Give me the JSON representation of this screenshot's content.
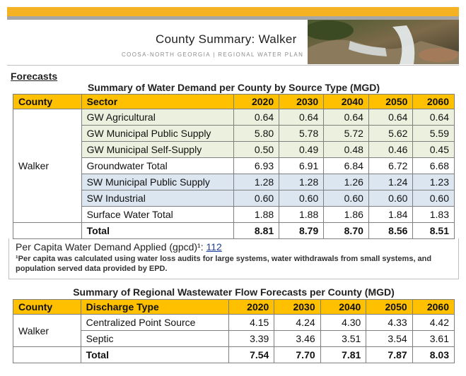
{
  "header": {
    "title": "County Summary:  Walker",
    "subtitle": "COOSA-NORTH GEORGIA | REGIONAL WATER PLAN"
  },
  "section_title": "Forecasts",
  "demand_table": {
    "title": "Summary of Water Demand per County by Source Type (MGD)",
    "columns": [
      "County",
      "Sector",
      "2020",
      "2030",
      "2040",
      "2050",
      "2060"
    ],
    "county": "Walker",
    "rows": [
      [
        "GW Agricultural",
        "0.64",
        "0.64",
        "0.64",
        "0.64",
        "0.64"
      ],
      [
        "GW Municipal Public Supply",
        "5.80",
        "5.78",
        "5.72",
        "5.62",
        "5.59"
      ],
      [
        "GW Municipal Self-Supply",
        "0.50",
        "0.49",
        "0.48",
        "0.46",
        "0.45"
      ],
      [
        "Groundwater Total",
        "6.93",
        "6.91",
        "6.84",
        "6.72",
        "6.68"
      ],
      [
        "SW Municipal Public Supply",
        "1.28",
        "1.28",
        "1.26",
        "1.24",
        "1.23"
      ],
      [
        "SW Industrial",
        "0.60",
        "0.60",
        "0.60",
        "0.60",
        "0.60"
      ],
      [
        "Surface Water Total",
        "1.88",
        "1.88",
        "1.86",
        "1.84",
        "1.83"
      ]
    ],
    "total": [
      "Total",
      "8.81",
      "8.79",
      "8.70",
      "8.56",
      "8.51"
    ]
  },
  "per_capita": {
    "label": "Per Capita Water Demand Applied (gpcd)¹:",
    "value": "112"
  },
  "footnote": "¹Per capita was calculated using water loss audits for large systems, water withdrawals from small systems, and population served data provided by EPD.",
  "wastewater_table": {
    "title": "Summary of Regional Wastewater Flow Forecasts per County (MGD)",
    "columns": [
      "County",
      "Discharge Type",
      "2020",
      "2030",
      "2040",
      "2050",
      "2060"
    ],
    "county": "Walker",
    "rows": [
      [
        "Centralized Point Source",
        "4.15",
        "4.24",
        "4.30",
        "4.33",
        "4.42"
      ],
      [
        "Septic",
        "3.39",
        "3.46",
        "3.51",
        "3.54",
        "3.61"
      ]
    ],
    "total": [
      "Total",
      "7.54",
      "7.70",
      "7.81",
      "7.87",
      "8.03"
    ]
  }
}
